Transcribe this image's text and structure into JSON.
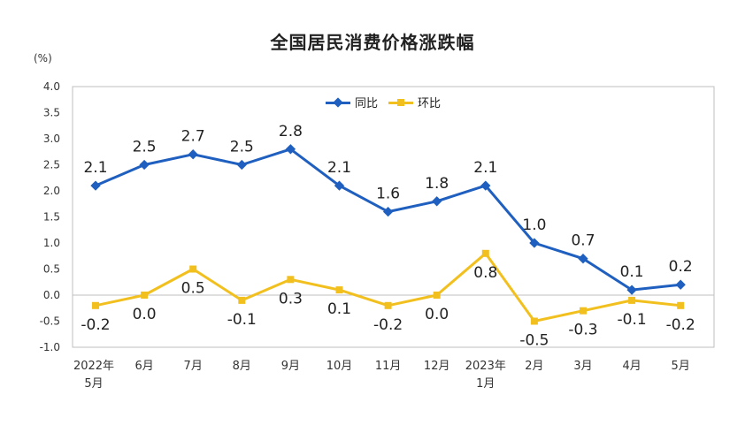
{
  "chart_data": {
    "type": "line",
    "title": "全国居民消费价格涨跌幅",
    "ylabel": "(%)",
    "ylim": [
      -1.0,
      4.0
    ],
    "yticks": [
      "4.0",
      "3.5",
      "3.0",
      "2.5",
      "2.0",
      "1.5",
      "1.0",
      "0.5",
      "0.0",
      "-0.5",
      "-1.0"
    ],
    "categories": [
      [
        "2022年",
        "5月"
      ],
      [
        "6月"
      ],
      [
        "7月"
      ],
      [
        "8月"
      ],
      [
        "9月"
      ],
      [
        "10月"
      ],
      [
        "11月"
      ],
      [
        "12月"
      ],
      [
        "2023年",
        "1月"
      ],
      [
        "2月"
      ],
      [
        "3月"
      ],
      [
        "4月"
      ],
      [
        "5月"
      ]
    ],
    "series": [
      {
        "name": "同比",
        "color": "#1f5fbf",
        "marker": "diamond",
        "values": [
          2.1,
          2.5,
          2.7,
          2.5,
          2.8,
          2.1,
          1.6,
          1.8,
          2.1,
          1.0,
          0.7,
          0.1,
          0.2
        ],
        "labels": [
          "2.1",
          "2.5",
          "2.7",
          "2.5",
          "2.8",
          "2.1",
          "1.6",
          "1.8",
          "2.1",
          "1.0",
          "0.7",
          "0.1",
          "0.2"
        ],
        "label_pos": "above"
      },
      {
        "name": "环比",
        "color": "#f2c01e",
        "marker": "square",
        "values": [
          -0.2,
          0.0,
          0.5,
          -0.1,
          0.3,
          0.1,
          -0.2,
          0.0,
          0.8,
          -0.5,
          -0.3,
          -0.1,
          -0.2
        ],
        "labels": [
          "-0.2",
          "0.0",
          "0.5",
          "-0.1",
          "0.3",
          "0.1",
          "-0.2",
          "0.0",
          "0.8",
          "-0.5",
          "-0.3",
          "-0.1",
          "-0.2"
        ],
        "label_pos": "below"
      }
    ],
    "grid": false,
    "legend": "top-center"
  }
}
